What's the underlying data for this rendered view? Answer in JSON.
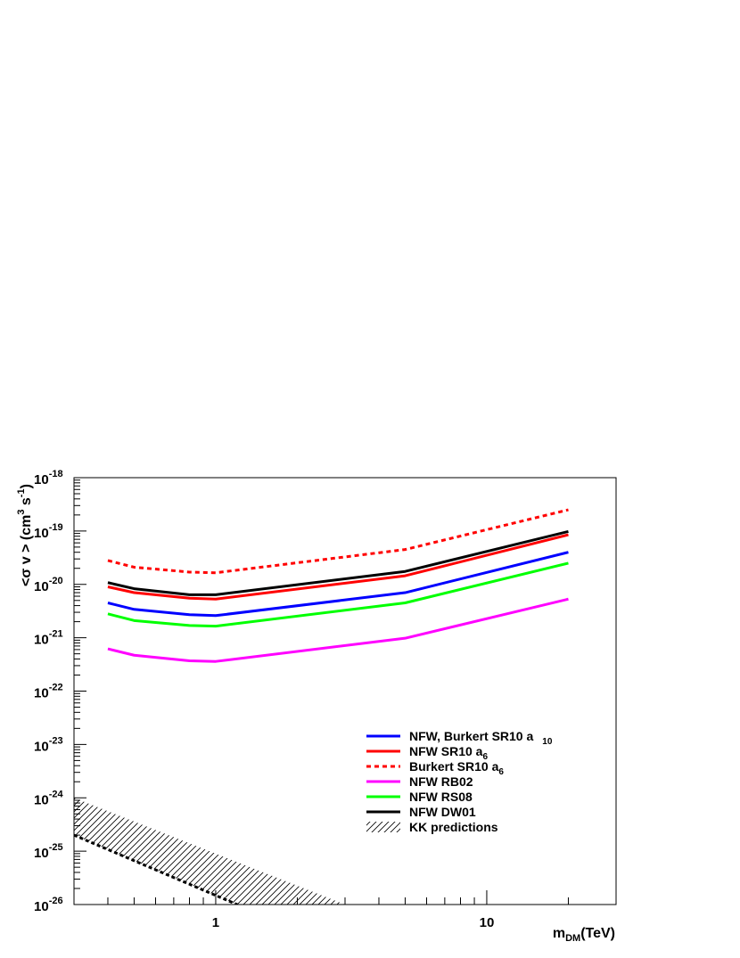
{
  "chart_data": {
    "type": "line",
    "title": "",
    "x_scale": "log",
    "y_scale": "log",
    "xlim": [
      0.3,
      30
    ],
    "ylim": [
      1e-26,
      1e-18
    ],
    "xlabel": {
      "base": "m",
      "sub": "DM",
      "rest": "(TeV)"
    },
    "ylabel": {
      "part1": "<σ v > (cm",
      "sup1": "3",
      "part2": " s",
      "sup2": "-1",
      "part3": ")"
    },
    "x_tick_labels": [
      {
        "value": 1,
        "label": "1"
      },
      {
        "value": 10,
        "label": "10"
      }
    ],
    "y_tick_labels": [
      {
        "value": 1e-26,
        "mant": "10",
        "exp": "-26"
      },
      {
        "value": 1e-25,
        "mant": "10",
        "exp": "-25"
      },
      {
        "value": 1e-24,
        "mant": "10",
        "exp": "-24"
      },
      {
        "value": 1e-23,
        "mant": "10",
        "exp": "-23"
      },
      {
        "value": 1e-22,
        "mant": "10",
        "exp": "-22"
      },
      {
        "value": 1e-21,
        "mant": "10",
        "exp": "-21"
      },
      {
        "value": 1e-20,
        "mant": "10",
        "exp": "-20"
      },
      {
        "value": 1e-19,
        "mant": "10",
        "exp": "-19"
      },
      {
        "value": 1e-18,
        "mant": "10",
        "exp": "-18"
      }
    ],
    "grid": false,
    "legend_position": "bottom-right",
    "series": [
      {
        "name": "NFW, Burkert SR10 a",
        "sub": "10",
        "color": "#0000ff",
        "dash": "solid",
        "x": [
          0.4,
          0.5,
          0.8,
          1,
          5,
          20
        ],
        "y": [
          4.5e-21,
          3.4e-21,
          2.7e-21,
          2.6e-21,
          7e-21,
          4e-20
        ]
      },
      {
        "name": "NFW SR10 a",
        "sub": "6",
        "color": "#ff0000",
        "dash": "solid",
        "x": [
          0.4,
          0.5,
          0.8,
          1,
          5,
          20
        ],
        "y": [
          9e-21,
          7e-21,
          5.5e-21,
          5.3e-21,
          1.45e-20,
          8.5e-20
        ]
      },
      {
        "name": "Burkert SR10 a",
        "sub": "6",
        "color": "#ff0000",
        "dash": "dotted",
        "x": [
          0.4,
          0.5,
          0.8,
          1,
          5,
          20
        ],
        "y": [
          2.8e-20,
          2.1e-20,
          1.7e-20,
          1.65e-20,
          4.5e-20,
          2.5e-19
        ]
      },
      {
        "name": "NFW RB02",
        "sub": "",
        "color": "#ff00ff",
        "dash": "solid",
        "x": [
          0.4,
          0.5,
          0.8,
          1,
          5,
          20
        ],
        "y": [
          6.2e-22,
          4.7e-22,
          3.7e-22,
          3.6e-22,
          9.8e-22,
          5.3e-21
        ]
      },
      {
        "name": "NFW RS08",
        "sub": "",
        "color": "#00ff00",
        "dash": "solid",
        "x": [
          0.4,
          0.5,
          0.8,
          1,
          5,
          20
        ],
        "y": [
          2.8e-21,
          2.1e-21,
          1.7e-21,
          1.65e-21,
          4.5e-21,
          2.5e-20
        ]
      },
      {
        "name": "NFW DW01",
        "sub": "",
        "color": "#000000",
        "dash": "solid",
        "x": [
          0.4,
          0.5,
          0.8,
          1,
          5,
          20
        ],
        "y": [
          1.08e-20,
          8.3e-21,
          6.4e-21,
          6.4e-21,
          1.75e-20,
          9.8e-20
        ]
      }
    ],
    "kk_predictions": {
      "name": "KK predictions",
      "band_upper": {
        "x": [
          0.3,
          3.0
        ],
        "y": [
          1e-24,
          1e-26
        ]
      },
      "band_lower": {
        "x": [
          0.3,
          1.2
        ],
        "y": [
          2e-25,
          1e-26
        ]
      },
      "dashed_line": {
        "x": [
          0.3,
          1.2
        ],
        "y": [
          2e-25,
          1e-26
        ]
      }
    }
  }
}
